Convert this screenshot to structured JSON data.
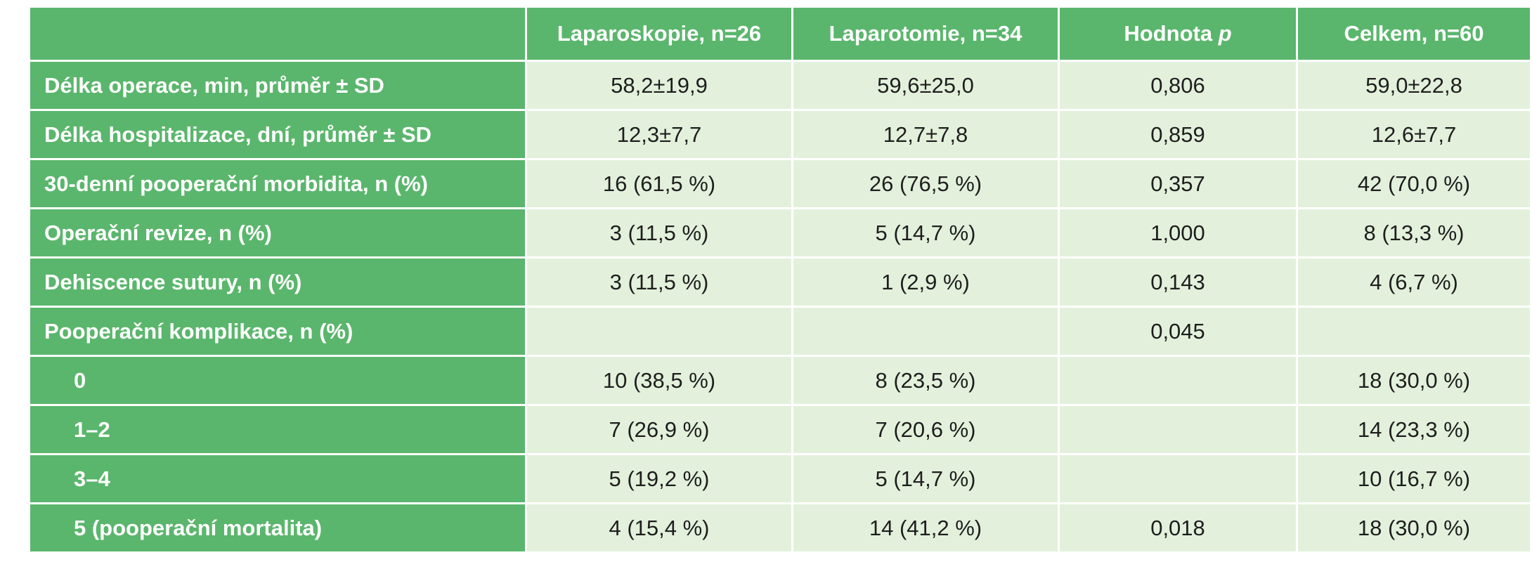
{
  "header": {
    "col1": "Laparoskopie, n=26",
    "col2": "Laparotomie, n=34",
    "col3_prefix": "Hodnota ",
    "col3_p": "p",
    "col4": "Celkem, n=60"
  },
  "rows": [
    {
      "label": "Délka operace, min, průměr ± SD",
      "lap": "58,2±19,9",
      "lapt": "59,6±25,0",
      "p": "0,806",
      "total": "59,0±22,8"
    },
    {
      "label": "Délka hospitalizace, dní, průměr ± SD",
      "lap": "12,3±7,7",
      "lapt": "12,7±7,8",
      "p": "0,859",
      "total": "12,6±7,7"
    },
    {
      "label": "30-denní pooperační morbidita, n (%)",
      "lap": "16 (61,5 %)",
      "lapt": "26 (76,5 %)",
      "p": "0,357",
      "total": "42 (70,0 %)"
    },
    {
      "label": "Operační revize, n (%)",
      "lap": "3 (11,5 %)",
      "lapt": "5 (14,7 %)",
      "p": "1,000",
      "total": "8 (13,3 %)"
    },
    {
      "label": "Dehiscence sutury, n (%)",
      "lap": "3 (11,5 %)",
      "lapt": "1 (2,9 %)",
      "p": "0,143",
      "total": "4 (6,7 %)"
    },
    {
      "label": "Pooperační komplikace, n (%)",
      "lap": "",
      "lapt": "",
      "p": "0,045",
      "total": ""
    },
    {
      "label": "0",
      "lap": "10 (38,5 %)",
      "lapt": "8 (23,5 %)",
      "p": "",
      "total": "18 (30,0 %)"
    },
    {
      "label": "1–2",
      "lap": "7 (26,9 %)",
      "lapt": "7 (20,6 %)",
      "p": "",
      "total": "14 (23,3 %)"
    },
    {
      "label": "3–4",
      "lap": "5 (19,2 %)",
      "lapt": "5 (14,7 %)",
      "p": "",
      "total": "10 (16,7 %)"
    },
    {
      "label": "5 (pooperační mortalita)",
      "lap": "4 (15,4 %)",
      "lapt": "14 (41,2 %)",
      "p": "0,018",
      "total": "18 (30,0 %)"
    }
  ],
  "colors": {
    "header_green": "#5ab66c",
    "cell_light_green": "#e3f1dc"
  }
}
